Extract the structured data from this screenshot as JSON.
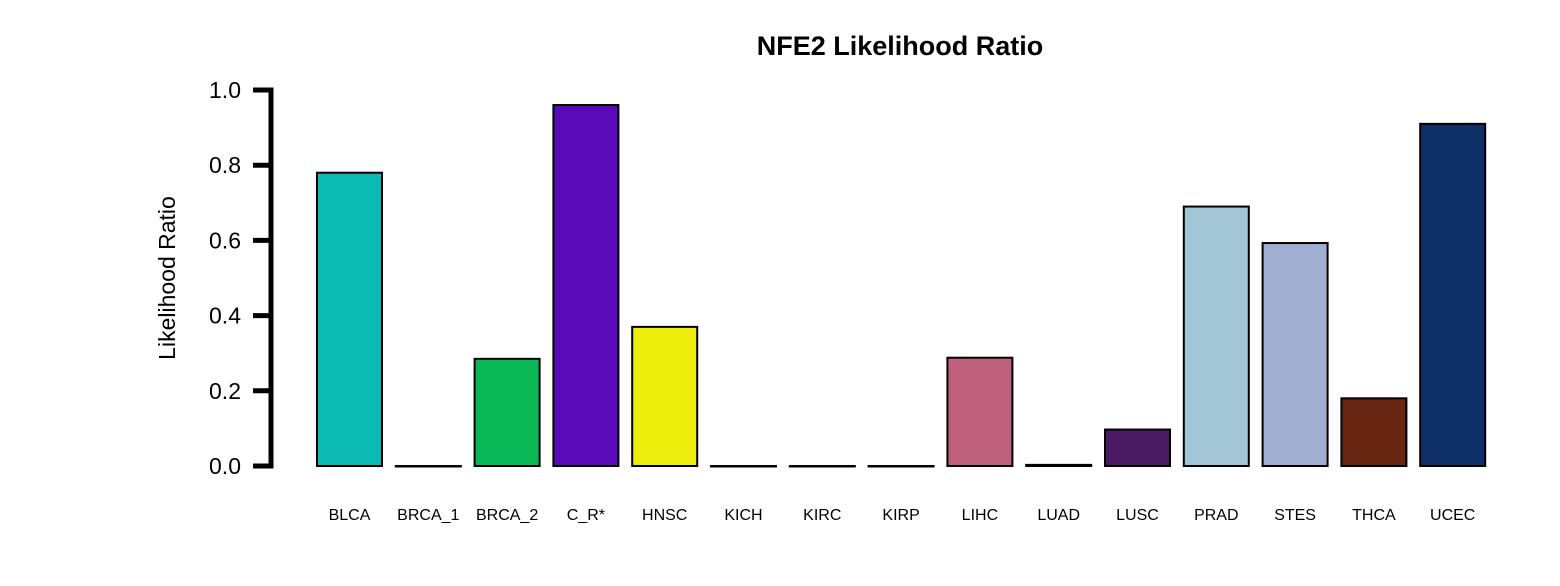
{
  "chart_data": {
    "type": "bar",
    "title": "NFE2 Likelihood Ratio",
    "xlabel": "",
    "ylabel": "Likelihood Ratio",
    "ylim": [
      0,
      1.0
    ],
    "yticks": [
      "0.0",
      "0.2",
      "0.4",
      "0.6",
      "0.8",
      "1.0"
    ],
    "ytick_values": [
      0.0,
      0.2,
      0.4,
      0.6,
      0.8,
      1.0
    ],
    "grid": false,
    "legend": "none",
    "categories": [
      "BLCA",
      "BRCA_1",
      "BRCA_2",
      "C_R*",
      "HNSC",
      "KICH",
      "KIRC",
      "KIRP",
      "LIHC",
      "LUAD",
      "LUSC",
      "PRAD",
      "STES",
      "THCA",
      "UCEC"
    ],
    "values": [
      0.78,
      0.0,
      0.285,
      0.96,
      0.37,
      0.0,
      0.0,
      0.0,
      0.288,
      0.003,
      0.097,
      0.69,
      0.593,
      0.18,
      0.91
    ],
    "colors": [
      "#0BBAB3",
      "#FFFFFF",
      "#0BB858",
      "#5B0ABA",
      "#EEEE0C",
      "#FFFFFF",
      "#FFFFFF",
      "#FFFFFF",
      "#BE607E",
      "#2A1A40",
      "#4A1B62",
      "#A2C6D5",
      "#A0AED2",
      "#682512",
      "#0E2F68"
    ]
  }
}
